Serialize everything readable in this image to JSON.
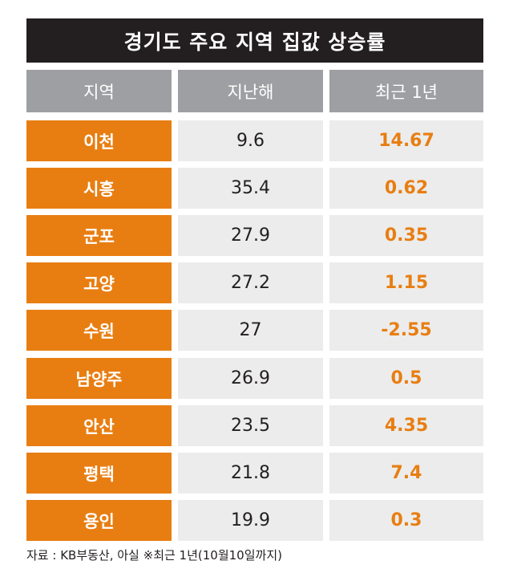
{
  "title": "경기도 주요 지역 집값 상승률",
  "colors": {
    "title_bg": "#231f20",
    "header_bg": "#9d9fa2",
    "accent": "#e87e12",
    "cell_bg": "#ececec"
  },
  "chart_data": {
    "type": "table",
    "columns": [
      "지역",
      "지난해",
      "최근 1년"
    ],
    "rows": [
      {
        "region": "이천",
        "last_year": "9.6",
        "recent": "14.67"
      },
      {
        "region": "시흥",
        "last_year": "35.4",
        "recent": "0.62"
      },
      {
        "region": "군포",
        "last_year": "27.9",
        "recent": "0.35"
      },
      {
        "region": "고양",
        "last_year": "27.2",
        "recent": "1.15"
      },
      {
        "region": "수원",
        "last_year": "27",
        "recent": "-2.55"
      },
      {
        "region": "남양주",
        "last_year": "26.9",
        "recent": "0.5"
      },
      {
        "region": "안산",
        "last_year": "23.5",
        "recent": "4.35"
      },
      {
        "region": "평택",
        "last_year": "21.8",
        "recent": "7.4"
      },
      {
        "region": "용인",
        "last_year": "19.9",
        "recent": "0.3"
      }
    ]
  },
  "source": "자료 : KB부동산, 아실 ※최근 1년(10월10일까지)"
}
